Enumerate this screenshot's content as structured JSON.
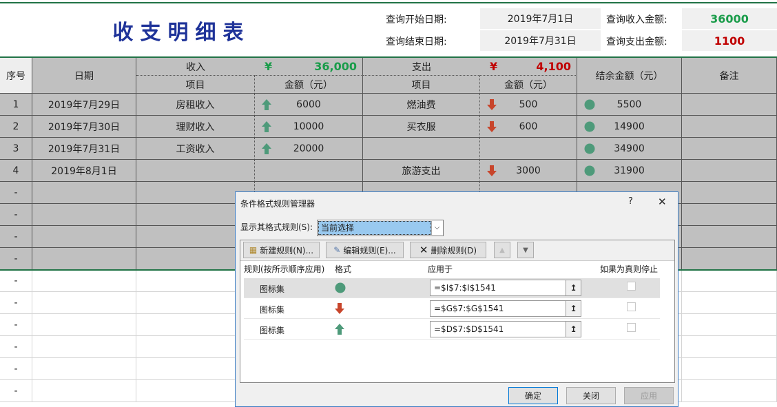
{
  "sheet": {
    "title": "收支明细表",
    "query": {
      "start_label": "查询开始日期:",
      "start_value": "2019年7月1日",
      "end_label": "查询结束日期:",
      "end_value": "2019年7月31日",
      "income_label": "查询收入金额:",
      "income_value": "36000",
      "expense_label": "查询支出金额:",
      "expense_value": "1100"
    },
    "headers": {
      "seq": "序号",
      "date": "日期",
      "income": "收入",
      "income_currency": "¥",
      "income_total": "36,000",
      "income_item": "项目",
      "income_amount": "金额（元）",
      "expense": "支出",
      "expense_currency": "¥",
      "expense_total": "4,100",
      "expense_item": "项目",
      "expense_amount": "金额（元）",
      "balance": "结余金额（元）",
      "note": "备注"
    },
    "rows": [
      {
        "seq": "1",
        "date": "2019年7月29日",
        "in_item": "房租收入",
        "in_amt": "6000",
        "out_item": "燃油费",
        "out_amt": "500",
        "balance": "5500"
      },
      {
        "seq": "2",
        "date": "2019年7月30日",
        "in_item": "理财收入",
        "in_amt": "10000",
        "out_item": "买衣服",
        "out_amt": "600",
        "balance": "14900"
      },
      {
        "seq": "3",
        "date": "2019年7月31日",
        "in_item": "工资收入",
        "in_amt": "20000",
        "out_item": "",
        "out_amt": "",
        "balance": "34900"
      },
      {
        "seq": "4",
        "date": "2019年8月1日",
        "in_item": "",
        "in_amt": "",
        "out_item": "旅游支出",
        "out_amt": "3000",
        "balance": "31900"
      }
    ],
    "empty_seq": "-",
    "colors": {
      "title": "#1f3399",
      "income": "#1a9c4a",
      "expense": "#c00000",
      "up_arrow": "#4e9a7a",
      "down_arrow": "#c8452b",
      "circle": "#4e9a7a",
      "table_gray": "#c0c0c0"
    }
  },
  "dialog": {
    "title": "条件格式规则管理器",
    "help": "?",
    "close": "✕",
    "show_label": "显示其格式规则(S):",
    "show_value": "当前选择",
    "new_rule": "新建规则(N)...",
    "edit_rule": "编辑规则(E)...",
    "delete_rule": "删除规则(D)",
    "columns": [
      "规则(按所示顺序应用)",
      "格式",
      "应用于",
      "如果为真则停止"
    ],
    "rules": [
      {
        "name": "图标集",
        "icon": "circle-icon",
        "applies": "=$I$7:$I$1541"
      },
      {
        "name": "图标集",
        "icon": "down-arrow-icon",
        "applies": "=$G$7:$G$1541"
      },
      {
        "name": "图标集",
        "icon": "up-arrow-icon",
        "applies": "=$D$7:$D$1541"
      }
    ],
    "ok": "确定",
    "close_btn": "关闭",
    "apply": "应用"
  }
}
